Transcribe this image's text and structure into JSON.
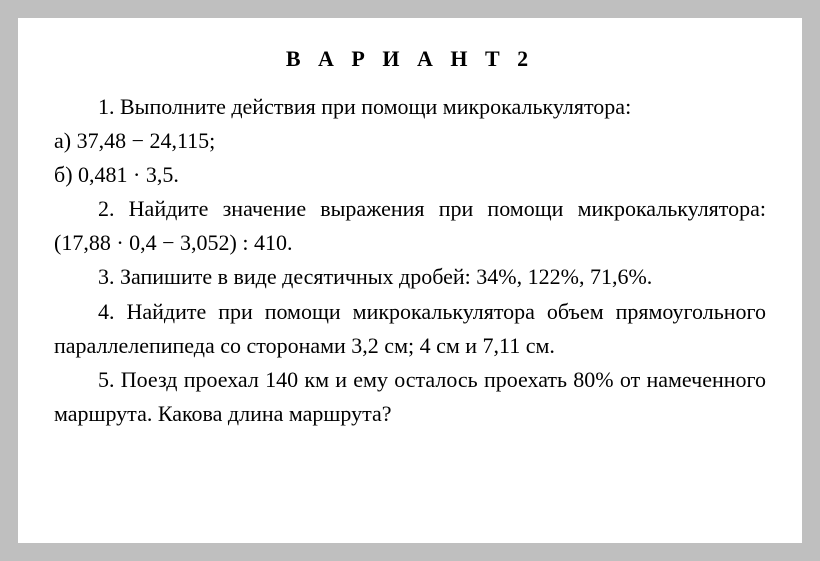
{
  "document": {
    "background_color": "#bfbfbf",
    "page_color": "#ffffff",
    "text_color": "#000000",
    "title_fontsize": 22,
    "body_fontsize": 22,
    "title_letter_spacing": 6,
    "title": "В А Р И А Н Т  2",
    "lines": [
      {
        "indent": true,
        "text": "1. Выполните действия при помощи микрокалькулятора:"
      },
      {
        "indent": false,
        "text": "а) 37,48 − 24,115;"
      },
      {
        "indent": false,
        "text": "б) 0,481 · 3,5."
      },
      {
        "indent": true,
        "text": "2. Найдите значение выражения при помощи микрокалькулятора: (17,88 · 0,4 − 3,052) : 410."
      },
      {
        "indent": true,
        "text": "3. Запишите в виде десятичных дробей: 34%, 122%, 71,6%."
      },
      {
        "indent": true,
        "text": "4. Найдите при помощи микрокалькулятора объем прямоугольного параллелепипеда со сторонами 3,2 см; 4 см и 7,11 см."
      },
      {
        "indent": true,
        "text": "5. Поезд проехал 140 км и ему осталось проехать 80% от намеченного маршрута. Какова длина маршрута?"
      }
    ]
  }
}
